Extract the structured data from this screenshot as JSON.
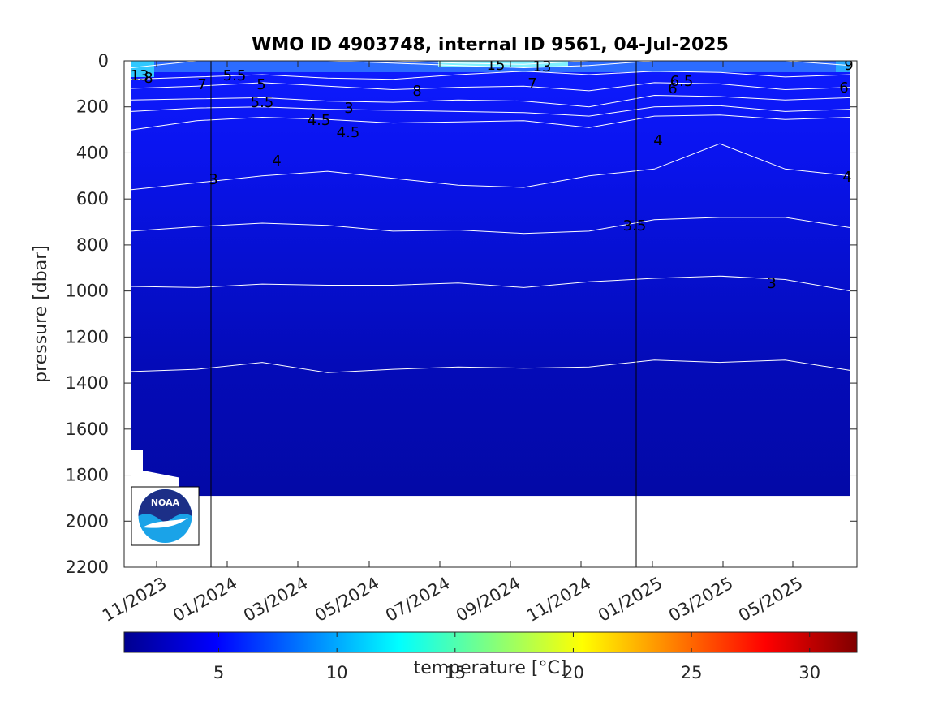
{
  "chart_data": {
    "type": "heatmap",
    "title": "WMO ID 4903748, internal ID 9561, 04-Jul-2025",
    "ylabel": "pressure [dbar]",
    "xlabel": "",
    "ylim": [
      2200,
      0
    ],
    "y_reversed": true,
    "y_ticks": [
      "0",
      "200",
      "400",
      "600",
      "800",
      "1000",
      "1200",
      "1400",
      "1600",
      "1800",
      "2000",
      "2200"
    ],
    "x_ticks": [
      "11/2023",
      "01/2024",
      "03/2024",
      "05/2024",
      "07/2024",
      "09/2024",
      "11/2024",
      "01/2025",
      "03/2025",
      "05/2025"
    ],
    "colorbar": {
      "label": "temperature [°C]",
      "range": [
        1,
        32
      ],
      "ticks": [
        "5",
        "10",
        "15",
        "20",
        "25",
        "30"
      ],
      "colormap": "jet"
    },
    "profile_bottom_dbar": 1890,
    "vertical_lines": [
      "01/2024",
      "01/2025"
    ],
    "contours": [
      {
        "level": 3,
        "depth_dbar": [
          1350,
          1340,
          1310,
          1355,
          1340,
          1330,
          1335,
          1330,
          1300,
          1310,
          1300,
          1345
        ]
      },
      {
        "level": 3.5,
        "depth_dbar": [
          980,
          985,
          970,
          975,
          975,
          965,
          985,
          960,
          945,
          935,
          950,
          1000
        ]
      },
      {
        "level": 4,
        "depth_dbar": [
          740,
          720,
          705,
          715,
          740,
          735,
          750,
          740,
          690,
          680,
          680,
          725
        ]
      },
      {
        "level": 4.5,
        "depth_dbar": [
          560,
          530,
          500,
          480,
          510,
          540,
          550,
          500,
          470,
          360,
          470,
          500
        ]
      },
      {
        "level": 5,
        "depth_dbar": [
          300,
          260,
          245,
          255,
          270,
          265,
          260,
          290,
          240,
          235,
          255,
          245
        ]
      },
      {
        "level": 5.5,
        "depth_dbar": [
          220,
          205,
          200,
          210,
          215,
          220,
          225,
          240,
          200,
          195,
          220,
          210
        ]
      },
      {
        "level": 6,
        "depth_dbar": [
          170,
          165,
          160,
          175,
          180,
          170,
          175,
          200,
          150,
          155,
          170,
          160
        ]
      },
      {
        "level": 7,
        "depth_dbar": [
          120,
          110,
          95,
          110,
          125,
          115,
          110,
          130,
          95,
          100,
          125,
          115
        ]
      },
      {
        "level": 8,
        "depth_dbar": [
          80,
          70,
          60,
          75,
          80,
          60,
          45,
          60,
          45,
          50,
          70,
          60
        ]
      },
      {
        "level": 13,
        "depth_dbar": [
          30,
          0,
          0,
          0,
          10,
          20,
          30,
          20,
          0,
          0,
          0,
          20
        ]
      },
      {
        "level": 15,
        "depth_dbar": [
          0,
          0,
          0,
          0,
          0,
          10,
          15,
          0,
          0,
          0,
          0,
          0
        ]
      }
    ],
    "contour_labels": [
      "13",
      "8",
      "7",
      "5.5",
      "5",
      "5.5",
      "4.5",
      "3",
      "4.5",
      "4",
      "3",
      "8",
      "15",
      "13",
      "7",
      "6.5",
      "6",
      "4",
      "3.5",
      "3",
      "9",
      "6",
      "4"
    ]
  }
}
